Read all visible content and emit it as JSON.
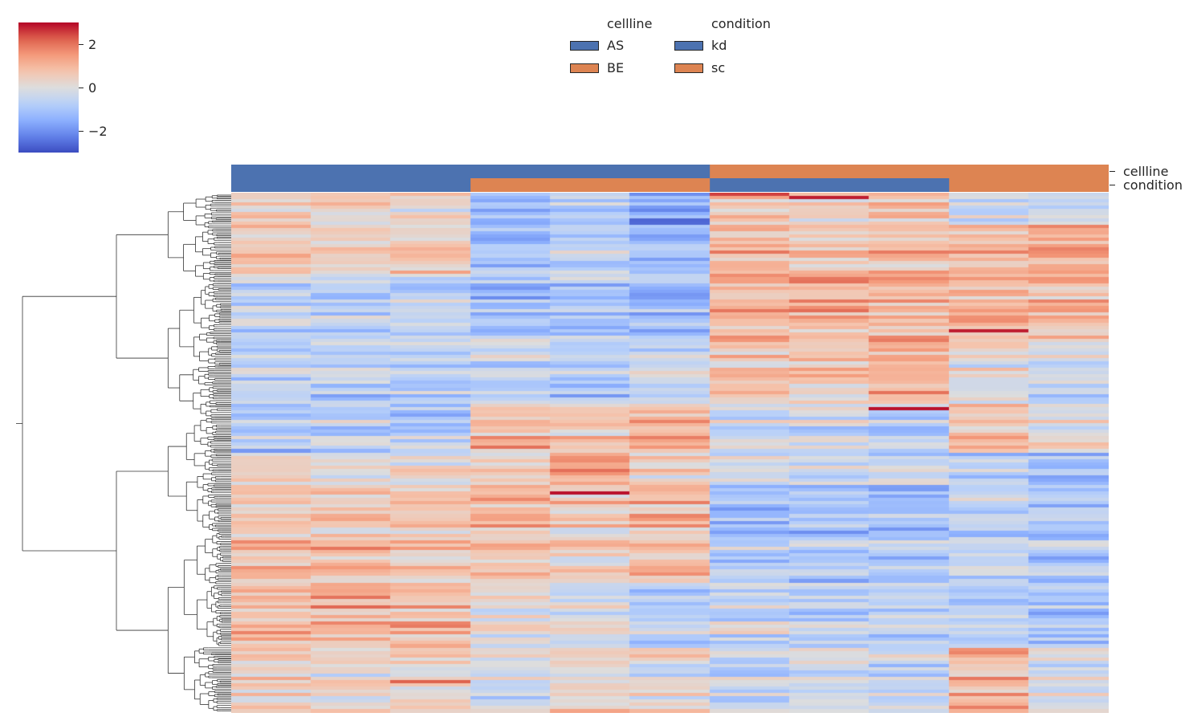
{
  "chart_data": {
    "type": "heatmap",
    "title": "",
    "colormap": "coolwarm",
    "colorbar": {
      "vmin": -3,
      "vmax": 3,
      "ticks": [
        2,
        0,
        -2
      ],
      "tick_labels": [
        "2",
        "0",
        "−2"
      ]
    },
    "n_columns": 11,
    "n_rows": 160,
    "col_annotations": {
      "cellline": [
        "AS",
        "AS",
        "AS",
        "AS",
        "AS",
        "AS",
        "BE",
        "BE",
        "BE",
        "BE",
        "BE"
      ],
      "condition": [
        "kd",
        "kd",
        "kd",
        "sc",
        "sc",
        "sc",
        "kd",
        "kd",
        "kd",
        "sc",
        "sc"
      ]
    },
    "annotation_labels": [
      "cellline",
      "condition"
    ],
    "legend": {
      "groups": [
        {
          "title": "cellline",
          "items": [
            {
              "label": "AS",
              "color": "#4c72b0"
            },
            {
              "label": "BE",
              "color": "#dd8452"
            }
          ]
        },
        {
          "title": "condition",
          "items": [
            {
              "label": "kd",
              "color": "#4c72b0"
            },
            {
              "label": "sc",
              "color": "#dd8452"
            }
          ]
        }
      ]
    },
    "block_means": {
      "segments_row_ranges": [
        [
          0,
          10
        ],
        [
          10,
          25
        ],
        [
          25,
          45
        ],
        [
          45,
          65
        ],
        [
          65,
          80
        ],
        [
          80,
          90
        ],
        [
          90,
          105
        ],
        [
          105,
          120
        ],
        [
          120,
          140
        ],
        [
          140,
          160
        ]
      ],
      "values": [
        [
          0.5,
          0.3,
          0.2,
          -1.3,
          -0.9,
          -1.8,
          0.6,
          0.4,
          0.5,
          -0.6,
          -0.4
        ],
        [
          0.7,
          0.4,
          0.5,
          -1.0,
          -0.7,
          -1.2,
          0.9,
          0.6,
          0.8,
          1.0,
          1.2
        ],
        [
          -0.6,
          -0.8,
          -0.7,
          -1.2,
          -0.9,
          -1.3,
          0.9,
          1.0,
          1.0,
          0.9,
          0.8
        ],
        [
          -0.6,
          -0.7,
          -0.8,
          -0.6,
          -0.9,
          -0.5,
          0.8,
          0.6,
          1.1,
          0.0,
          -0.4
        ],
        [
          -0.9,
          -0.6,
          -0.8,
          1.0,
          0.7,
          1.0,
          -0.4,
          -0.3,
          -0.5,
          0.9,
          0.2
        ],
        [
          0.2,
          0.1,
          0.0,
          0.4,
          1.2,
          0.2,
          -0.3,
          -0.4,
          -0.3,
          -0.8,
          -1.2
        ],
        [
          0.8,
          0.7,
          0.8,
          1.0,
          0.7,
          1.0,
          -1.1,
          -1.0,
          -1.1,
          -0.4,
          -0.7
        ],
        [
          0.8,
          0.9,
          0.7,
          0.5,
          0.4,
          0.7,
          -0.8,
          -0.9,
          -0.8,
          -0.6,
          -0.9
        ],
        [
          1.0,
          1.1,
          0.9,
          0.1,
          -0.2,
          -0.8,
          -0.4,
          -0.6,
          -0.5,
          -0.7,
          -0.9
        ],
        [
          0.3,
          0.2,
          0.2,
          -0.2,
          0.2,
          0.0,
          -0.6,
          -0.3,
          -0.6,
          0.9,
          -0.2
        ]
      ]
    },
    "highlights": [
      {
        "row": 92,
        "col": 4,
        "value": 2.9
      },
      {
        "row": 42,
        "col": 9,
        "value": 2.8
      },
      {
        "row": 66,
        "col": 8,
        "value": 2.9
      },
      {
        "row": 1,
        "col": 7,
        "value": 2.8
      },
      {
        "row": 0,
        "col": 6,
        "value": 2.5
      },
      {
        "row": 150,
        "col": 2,
        "value": 2.2
      }
    ]
  }
}
